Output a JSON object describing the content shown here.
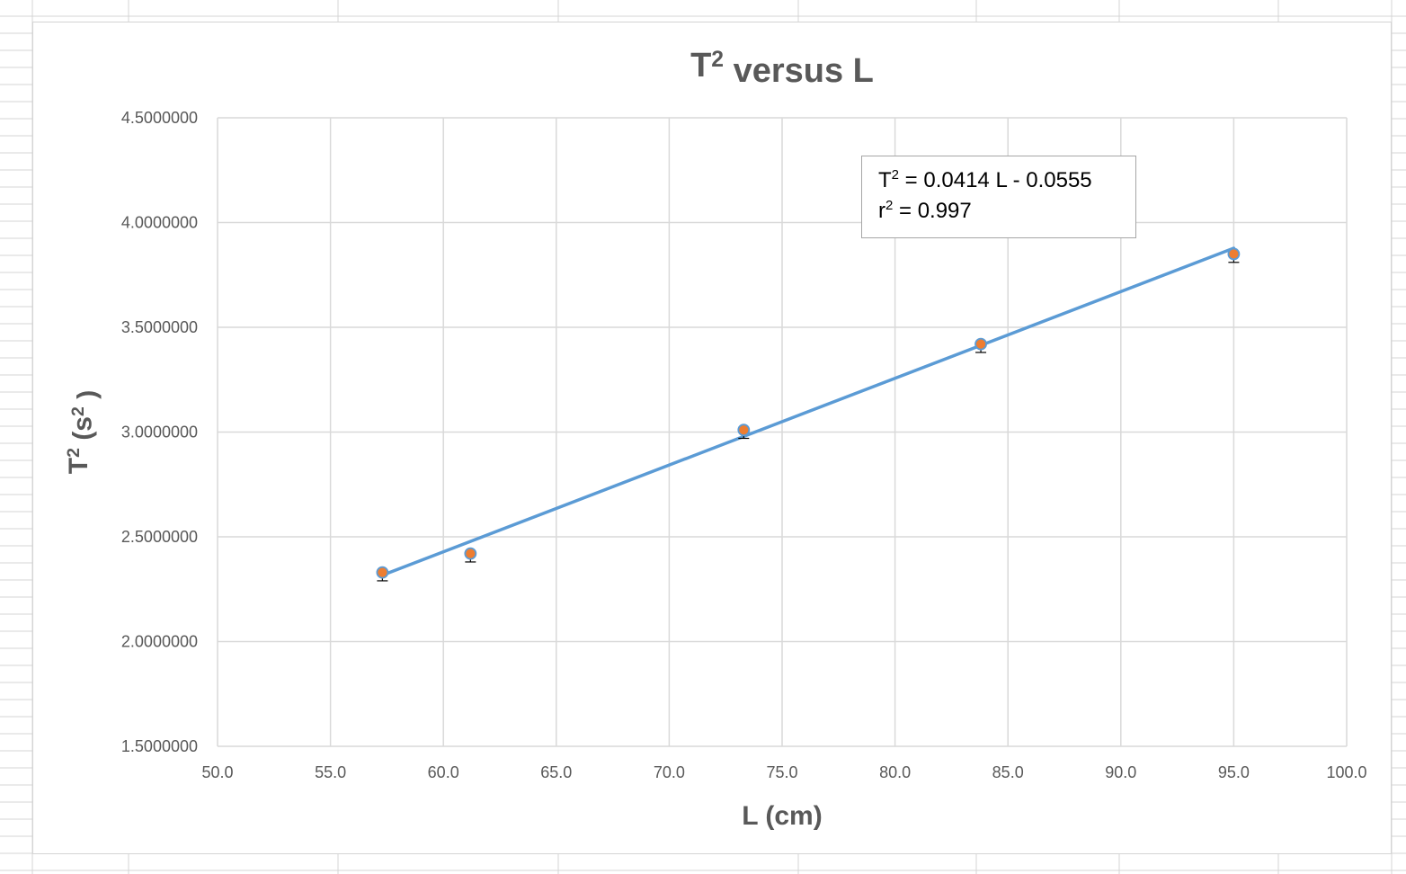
{
  "colors": {
    "trendline": "#5b9bd5",
    "marker_fill": "#ed7d31",
    "marker_edge": "#5b9bd5",
    "error_bar": "#000000",
    "gridline": "#d9d9d9",
    "text": "#595959",
    "sheet_grid": "#d4d4d4"
  },
  "chart_data": {
    "type": "scatter",
    "title": "T² versus L",
    "xlabel": "L (cm)",
    "ylabel": "T² (s² )",
    "xlim": [
      50.0,
      100.0
    ],
    "ylim": [
      1.5,
      4.5
    ],
    "x_ticks": [
      "50.0",
      "55.0",
      "60.0",
      "65.0",
      "70.0",
      "75.0",
      "80.0",
      "85.0",
      "90.0",
      "95.0",
      "100.0"
    ],
    "y_ticks": [
      "1.5000000",
      "2.0000000",
      "2.5000000",
      "3.0000000",
      "3.5000000",
      "4.0000000",
      "4.5000000"
    ],
    "grid": true,
    "legend": "none",
    "points": [
      {
        "x": 57.3,
        "y": 2.33,
        "y_err_minus": 0.04
      },
      {
        "x": 61.2,
        "y": 2.42,
        "y_err_minus": 0.04
      },
      {
        "x": 73.3,
        "y": 3.01,
        "y_err_minus": 0.04
      },
      {
        "x": 83.8,
        "y": 3.42,
        "y_err_minus": 0.04
      },
      {
        "x": 95.0,
        "y": 3.85,
        "y_err_minus": 0.04
      }
    ],
    "trendline": {
      "slope": 0.0414,
      "intercept": -0.0555,
      "x_range": [
        57.3,
        95.0
      ],
      "equation_lhs": "T",
      "equation_rhs": " = 0.0414 L - 0.0555",
      "r2_lhs": "r",
      "r2_rhs": " = 0.997",
      "exponent": "2"
    }
  }
}
